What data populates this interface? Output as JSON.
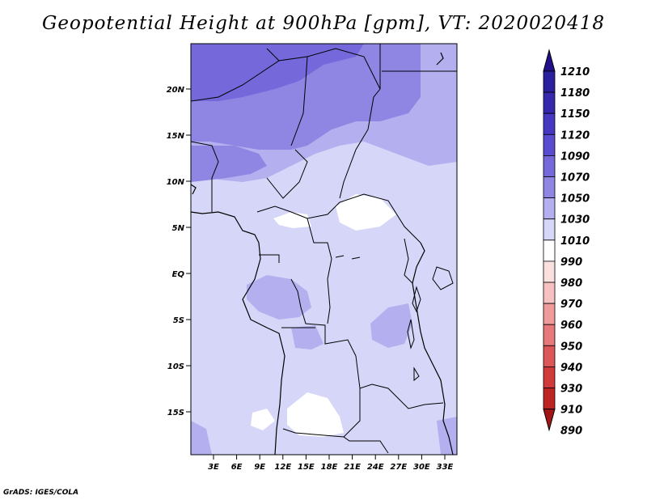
{
  "title": "Geopotential Height at 900hPa [gpm], VT: 2020020418",
  "credit": "GrADS: IGES/COLA",
  "map": {
    "region": "Central Africa",
    "lat_labels": [
      "20N",
      "15N",
      "10N",
      "5N",
      "EQ",
      "5S",
      "10S",
      "15S"
    ],
    "lon_labels": [
      "3E",
      "6E",
      "9E",
      "12E",
      "15E",
      "18E",
      "21E",
      "24E",
      "27E",
      "30E",
      "33E"
    ]
  },
  "colorbar": {
    "levels": [
      {
        "label": "1210",
        "color": "#21108a"
      },
      {
        "label": "1180",
        "color": "#2a1f9e"
      },
      {
        "label": "1150",
        "color": "#3628ad"
      },
      {
        "label": "1120",
        "color": "#4638c2"
      },
      {
        "label": "1090",
        "color": "#5a4cd0"
      },
      {
        "label": "1070",
        "color": "#7468db"
      },
      {
        "label": "1050",
        "color": "#8f86e3"
      },
      {
        "label": "1030",
        "color": "#b4b0f0"
      },
      {
        "label": "1010",
        "color": "#d6d6f8"
      },
      {
        "label": "990",
        "color": "#ffffff"
      },
      {
        "label": "980",
        "color": "#fbe0e0"
      },
      {
        "label": "970",
        "color": "#f6c1c1"
      },
      {
        "label": "960",
        "color": "#ef9b9b"
      },
      {
        "label": "950",
        "color": "#e67a7a"
      },
      {
        "label": "940",
        "color": "#dc5858"
      },
      {
        "label": "930",
        "color": "#d03a3a"
      },
      {
        "label": "910",
        "color": "#bf2424"
      },
      {
        "label": "890",
        "color": "#a41616"
      }
    ]
  }
}
